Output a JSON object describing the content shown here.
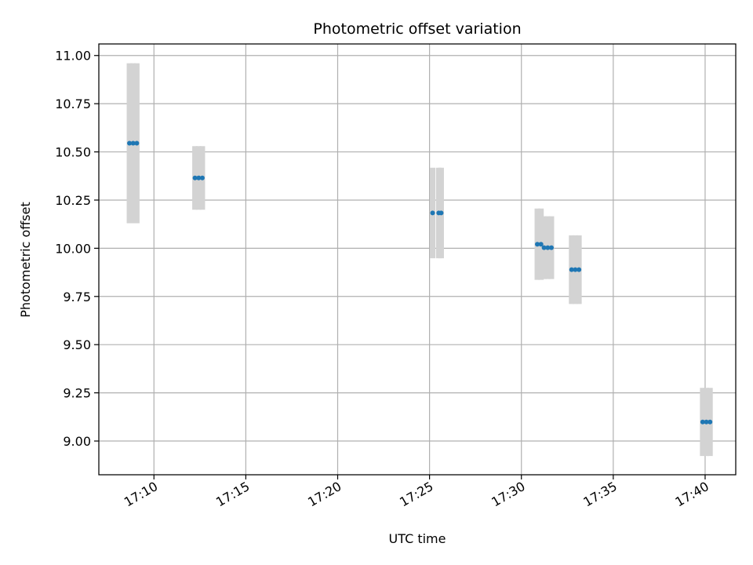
{
  "chart_data": {
    "type": "scatter",
    "title": "Photometric offset variation",
    "xlabel": "UTC time",
    "ylabel": "Photometric offset",
    "grid": true,
    "x_axis": {
      "unit": "time of day (HH:MM, UTC)",
      "range": [
        "17:07",
        "17:41:40"
      ],
      "tick_values": [
        "17:10",
        "17:15",
        "17:20",
        "17:25",
        "17:30",
        "17:35",
        "17:40"
      ],
      "tick_labels": [
        "17:10",
        "17:15",
        "17:20",
        "17:25",
        "17:30",
        "17:35",
        "17:40"
      ]
    },
    "y_axis": {
      "range": [
        8.825,
        11.06
      ],
      "tick_values": [
        9.0,
        9.25,
        9.5,
        9.75,
        10.0,
        10.25,
        10.5,
        10.75,
        11.0
      ],
      "tick_labels": [
        "9.00",
        "9.25",
        "9.50",
        "9.75",
        "10.00",
        "10.25",
        "10.50",
        "10.75",
        "11.00"
      ]
    },
    "series": [
      {
        "marker_color": "#1f77b4",
        "errorbar_color": "#d3d3d3",
        "points": [
          {
            "t": "17:08:40",
            "y": 10.545,
            "err": 0.415
          },
          {
            "t": "17:08:52",
            "y": 10.545,
            "err": 0.415
          },
          {
            "t": "17:09:04",
            "y": 10.545,
            "err": 0.415
          },
          {
            "t": "17:12:14",
            "y": 10.365,
            "err": 0.165
          },
          {
            "t": "17:12:26",
            "y": 10.365,
            "err": 0.165
          },
          {
            "t": "17:12:38",
            "y": 10.365,
            "err": 0.165
          },
          {
            "t": "17:25:10",
            "y": 10.183,
            "err": 0.235
          },
          {
            "t": "17:25:30",
            "y": 10.183,
            "err": 0.235
          },
          {
            "t": "17:25:38",
            "y": 10.183,
            "err": 0.235
          },
          {
            "t": "17:30:52",
            "y": 10.021,
            "err": 0.185
          },
          {
            "t": "17:31:04",
            "y": 10.021,
            "err": 0.185
          },
          {
            "t": "17:31:14",
            "y": 10.003,
            "err": 0.163
          },
          {
            "t": "17:31:26",
            "y": 10.003,
            "err": 0.163
          },
          {
            "t": "17:31:38",
            "y": 10.003,
            "err": 0.163
          },
          {
            "t": "17:32:44",
            "y": 9.889,
            "err": 0.178
          },
          {
            "t": "17:32:56",
            "y": 9.889,
            "err": 0.178
          },
          {
            "t": "17:33:08",
            "y": 9.889,
            "err": 0.178
          },
          {
            "t": "17:39:52",
            "y": 9.099,
            "err": 0.177
          },
          {
            "t": "17:40:04",
            "y": 9.099,
            "err": 0.177
          },
          {
            "t": "17:40:16",
            "y": 9.099,
            "err": 0.177
          }
        ]
      }
    ]
  }
}
